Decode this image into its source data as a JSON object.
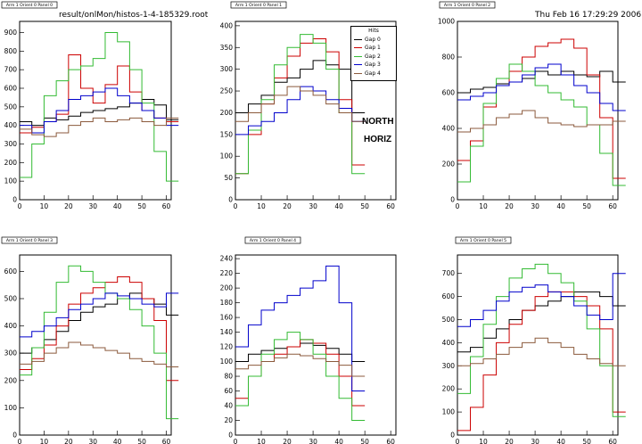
{
  "header": {
    "filename": "result/onlMon/histos-1-4-185329.root",
    "timestamp": "Thu Feb 16 17:29:29 2006"
  },
  "annotations": {
    "north": "NORTH",
    "horiz": "HORIZ"
  },
  "legend": {
    "title": "Hits",
    "entries": [
      {
        "name": "Gap 0",
        "color": "#000000"
      },
      {
        "name": "Gap 1",
        "color": "#cc0000"
      },
      {
        "name": "Gap 2",
        "color": "#33bb33"
      },
      {
        "name": "Gap 3",
        "color": "#0000cc"
      },
      {
        "name": "Gap 4",
        "color": "#8b5a3c"
      }
    ]
  },
  "chart_data": [
    {
      "type": "line",
      "title": "Arm 1 Orient 0 Panel 0",
      "xlim": [
        0,
        62
      ],
      "ylim": [
        0,
        960
      ],
      "xticks": [
        0,
        10,
        20,
        30,
        40,
        50,
        60
      ],
      "yticks": [
        0,
        100,
        200,
        300,
        400,
        500,
        600,
        700,
        800,
        900
      ],
      "series": [
        {
          "name": "Gap 0",
          "color": "#000000",
          "x": [
            0,
            5,
            10,
            15,
            20,
            25,
            30,
            35,
            40,
            45,
            50,
            55,
            60
          ],
          "y": [
            420,
            400,
            440,
            430,
            450,
            470,
            480,
            490,
            500,
            520,
            540,
            510,
            430
          ]
        },
        {
          "name": "Gap 1",
          "color": "#cc0000",
          "x": [
            0,
            5,
            10,
            15,
            20,
            25,
            30,
            35,
            40,
            45,
            50,
            55,
            60
          ],
          "y": [
            360,
            390,
            420,
            460,
            780,
            600,
            520,
            620,
            720,
            580,
            480,
            440,
            420
          ]
        },
        {
          "name": "Gap 2",
          "color": "#33bb33",
          "x": [
            0,
            5,
            10,
            15,
            20,
            25,
            30,
            35,
            40,
            45,
            50,
            55,
            60
          ],
          "y": [
            120,
            300,
            560,
            640,
            700,
            720,
            760,
            900,
            850,
            700,
            520,
            260,
            100
          ]
        },
        {
          "name": "Gap 3",
          "color": "#0000cc",
          "x": [
            0,
            5,
            10,
            15,
            20,
            25,
            30,
            35,
            40,
            45,
            50,
            55,
            60
          ],
          "y": [
            400,
            360,
            420,
            480,
            540,
            560,
            580,
            600,
            560,
            520,
            480,
            440,
            400
          ]
        },
        {
          "name": "Gap 4",
          "color": "#8b5a3c",
          "x": [
            0,
            5,
            10,
            15,
            20,
            25,
            30,
            35,
            40,
            45,
            50,
            55,
            60
          ],
          "y": [
            380,
            350,
            340,
            360,
            400,
            420,
            440,
            420,
            430,
            440,
            420,
            400,
            440
          ]
        }
      ]
    },
    {
      "type": "line",
      "title": "Arm 1 Orient 0 Panel 1",
      "xlim": [
        0,
        62
      ],
      "ylim": [
        0,
        410
      ],
      "xticks": [
        0,
        10,
        20,
        30,
        40,
        50,
        60
      ],
      "yticks": [
        0,
        50,
        100,
        150,
        200,
        250,
        300,
        350,
        400
      ],
      "series": [
        {
          "name": "Gap 0",
          "color": "#000000",
          "x": [
            0,
            5,
            10,
            15,
            20,
            25,
            30,
            35,
            40,
            45
          ],
          "y": [
            200,
            220,
            240,
            270,
            280,
            300,
            320,
            310,
            300,
            200
          ]
        },
        {
          "name": "Gap 1",
          "color": "#cc0000",
          "x": [
            0,
            5,
            10,
            15,
            20,
            25,
            30,
            35,
            40,
            45
          ],
          "y": [
            60,
            150,
            220,
            280,
            330,
            360,
            370,
            340,
            230,
            80
          ]
        },
        {
          "name": "Gap 2",
          "color": "#33bb33",
          "x": [
            0,
            5,
            10,
            15,
            20,
            25,
            30,
            35,
            40,
            45
          ],
          "y": [
            60,
            160,
            230,
            310,
            350,
            380,
            360,
            300,
            200,
            60
          ]
        },
        {
          "name": "Gap 3",
          "color": "#0000cc",
          "x": [
            0,
            5,
            10,
            15,
            20,
            25,
            30,
            35,
            40,
            45
          ],
          "y": [
            150,
            170,
            180,
            200,
            230,
            260,
            250,
            230,
            210,
            180
          ]
        },
        {
          "name": "Gap 4",
          "color": "#8b5a3c",
          "x": [
            0,
            5,
            10,
            15,
            20,
            25,
            30,
            35,
            40,
            45
          ],
          "y": [
            180,
            200,
            220,
            240,
            260,
            250,
            240,
            220,
            200,
            180
          ]
        }
      ]
    },
    {
      "type": "line",
      "title": "Arm 1 Orient 0 Panel 2",
      "xlim": [
        0,
        62
      ],
      "ylim": [
        0,
        1000
      ],
      "xticks": [
        0,
        10,
        20,
        30,
        40,
        50,
        60
      ],
      "yticks": [
        0,
        200,
        400,
        600,
        800,
        1000
      ],
      "series": [
        {
          "name": "Gap 0",
          "color": "#000000",
          "x": [
            0,
            5,
            10,
            15,
            20,
            25,
            30,
            35,
            40,
            45,
            50,
            55,
            60
          ],
          "y": [
            600,
            620,
            630,
            650,
            660,
            680,
            720,
            700,
            720,
            700,
            690,
            720,
            660
          ]
        },
        {
          "name": "Gap 1",
          "color": "#cc0000",
          "x": [
            0,
            5,
            10,
            15,
            20,
            25,
            30,
            35,
            40,
            45,
            50,
            55,
            60
          ],
          "y": [
            220,
            330,
            520,
            640,
            720,
            800,
            860,
            880,
            900,
            850,
            700,
            460,
            120
          ]
        },
        {
          "name": "Gap 2",
          "color": "#33bb33",
          "x": [
            0,
            5,
            10,
            15,
            20,
            25,
            30,
            35,
            40,
            45,
            50,
            55,
            60
          ],
          "y": [
            100,
            300,
            540,
            680,
            760,
            720,
            640,
            600,
            560,
            520,
            420,
            260,
            80
          ]
        },
        {
          "name": "Gap 3",
          "color": "#0000cc",
          "x": [
            0,
            5,
            10,
            15,
            20,
            25,
            30,
            35,
            40,
            45,
            50,
            55,
            60
          ],
          "y": [
            560,
            580,
            600,
            640,
            660,
            700,
            740,
            760,
            700,
            640,
            600,
            540,
            500
          ]
        },
        {
          "name": "Gap 4",
          "color": "#8b5a3c",
          "x": [
            0,
            5,
            10,
            15,
            20,
            25,
            30,
            35,
            40,
            45,
            50,
            55,
            60
          ],
          "y": [
            380,
            400,
            420,
            460,
            480,
            500,
            460,
            430,
            420,
            410,
            420,
            420,
            440
          ]
        }
      ]
    },
    {
      "type": "line",
      "title": "Arm 1 Orient 0 Panel 3",
      "xlim": [
        0,
        62
      ],
      "ylim": [
        0,
        660
      ],
      "xticks": [
        0,
        10,
        20,
        30,
        40,
        50,
        60
      ],
      "yticks": [
        0,
        100,
        200,
        300,
        400,
        500,
        600
      ],
      "series": [
        {
          "name": "Gap 0",
          "color": "#000000",
          "x": [
            0,
            5,
            10,
            15,
            20,
            25,
            30,
            35,
            40,
            45,
            50,
            55,
            60
          ],
          "y": [
            300,
            320,
            350,
            380,
            420,
            450,
            470,
            480,
            500,
            520,
            500,
            480,
            440
          ]
        },
        {
          "name": "Gap 1",
          "color": "#cc0000",
          "x": [
            0,
            5,
            10,
            15,
            20,
            25,
            30,
            35,
            40,
            45,
            50,
            55,
            60
          ],
          "y": [
            240,
            280,
            330,
            400,
            480,
            520,
            540,
            560,
            580,
            560,
            500,
            420,
            200
          ]
        },
        {
          "name": "Gap 2",
          "color": "#33bb33",
          "x": [
            0,
            5,
            10,
            15,
            20,
            25,
            30,
            35,
            40,
            45,
            50,
            55,
            60
          ],
          "y": [
            220,
            320,
            450,
            560,
            620,
            600,
            560,
            520,
            500,
            460,
            400,
            300,
            60
          ]
        },
        {
          "name": "Gap 3",
          "color": "#0000cc",
          "x": [
            0,
            5,
            10,
            15,
            20,
            25,
            30,
            35,
            40,
            45,
            50,
            55,
            60
          ],
          "y": [
            360,
            380,
            400,
            430,
            460,
            480,
            500,
            520,
            510,
            500,
            480,
            470,
            520
          ]
        },
        {
          "name": "Gap 4",
          "color": "#8b5a3c",
          "x": [
            0,
            5,
            10,
            15,
            20,
            25,
            30,
            35,
            40,
            45,
            50,
            55,
            60
          ],
          "y": [
            260,
            270,
            300,
            320,
            340,
            330,
            320,
            310,
            300,
            280,
            270,
            260,
            250
          ]
        }
      ]
    },
    {
      "type": "line",
      "title": "Arm 1 Orient 0 Panel 4",
      "xlim": [
        0,
        62
      ],
      "ylim": [
        0,
        245
      ],
      "xticks": [
        0,
        10,
        20,
        30,
        40,
        50,
        60
      ],
      "yticks": [
        0,
        20,
        40,
        60,
        80,
        100,
        120,
        140,
        160,
        180,
        200,
        220,
        240
      ],
      "series": [
        {
          "name": "Gap 0",
          "color": "#000000",
          "x": [
            0,
            5,
            10,
            15,
            20,
            25,
            30,
            35,
            40,
            45
          ],
          "y": [
            100,
            110,
            115,
            118,
            120,
            125,
            122,
            118,
            110,
            100
          ]
        },
        {
          "name": "Gap 1",
          "color": "#cc0000",
          "x": [
            0,
            5,
            10,
            15,
            20,
            25,
            30,
            35,
            40,
            45
          ],
          "y": [
            50,
            80,
            100,
            110,
            120,
            130,
            125,
            110,
            80,
            40
          ]
        },
        {
          "name": "Gap 2",
          "color": "#33bb33",
          "x": [
            0,
            5,
            10,
            15,
            20,
            25,
            30,
            35,
            40,
            45
          ],
          "y": [
            40,
            80,
            110,
            130,
            140,
            130,
            110,
            80,
            50,
            20
          ]
        },
        {
          "name": "Gap 3",
          "color": "#0000cc",
          "x": [
            0,
            5,
            10,
            15,
            20,
            25,
            30,
            35,
            40,
            45
          ],
          "y": [
            120,
            150,
            170,
            180,
            190,
            200,
            210,
            230,
            180,
            60
          ]
        },
        {
          "name": "Gap 4",
          "color": "#8b5a3c",
          "x": [
            0,
            5,
            10,
            15,
            20,
            25,
            30,
            35,
            40,
            45
          ],
          "y": [
            90,
            95,
            100,
            105,
            110,
            108,
            104,
            100,
            95,
            80
          ]
        }
      ]
    },
    {
      "type": "line",
      "title": "Arm 1 Orient 0 Panel 5",
      "xlim": [
        0,
        62
      ],
      "ylim": [
        0,
        780
      ],
      "xticks": [
        0,
        10,
        20,
        30,
        40,
        50,
        60
      ],
      "yticks": [
        0,
        100,
        200,
        300,
        400,
        500,
        600,
        700
      ],
      "series": [
        {
          "name": "Gap 0",
          "color": "#000000",
          "x": [
            0,
            5,
            10,
            15,
            20,
            25,
            30,
            35,
            40,
            45,
            50,
            55,
            60
          ],
          "y": [
            360,
            380,
            420,
            460,
            500,
            540,
            560,
            580,
            600,
            620,
            620,
            600,
            560
          ]
        },
        {
          "name": "Gap 1",
          "color": "#cc0000",
          "x": [
            0,
            5,
            10,
            15,
            20,
            25,
            30,
            35,
            40,
            45,
            50,
            55,
            60
          ],
          "y": [
            20,
            120,
            260,
            400,
            480,
            540,
            600,
            620,
            620,
            600,
            560,
            460,
            100
          ]
        },
        {
          "name": "Gap 2",
          "color": "#33bb33",
          "x": [
            0,
            5,
            10,
            15,
            20,
            25,
            30,
            35,
            40,
            45,
            50,
            55,
            60
          ],
          "y": [
            180,
            340,
            480,
            600,
            680,
            720,
            740,
            700,
            660,
            580,
            460,
            300,
            80
          ]
        },
        {
          "name": "Gap 3",
          "color": "#0000cc",
          "x": [
            0,
            5,
            10,
            15,
            20,
            25,
            30,
            35,
            40,
            45,
            50,
            55,
            60
          ],
          "y": [
            470,
            500,
            540,
            580,
            620,
            640,
            650,
            620,
            600,
            560,
            520,
            500,
            700
          ]
        },
        {
          "name": "Gap 4",
          "color": "#8b5a3c",
          "x": [
            0,
            5,
            10,
            15,
            20,
            25,
            30,
            35,
            40,
            45,
            50,
            55,
            60
          ],
          "y": [
            300,
            310,
            330,
            350,
            380,
            400,
            420,
            400,
            380,
            350,
            330,
            310,
            300
          ]
        }
      ]
    }
  ]
}
